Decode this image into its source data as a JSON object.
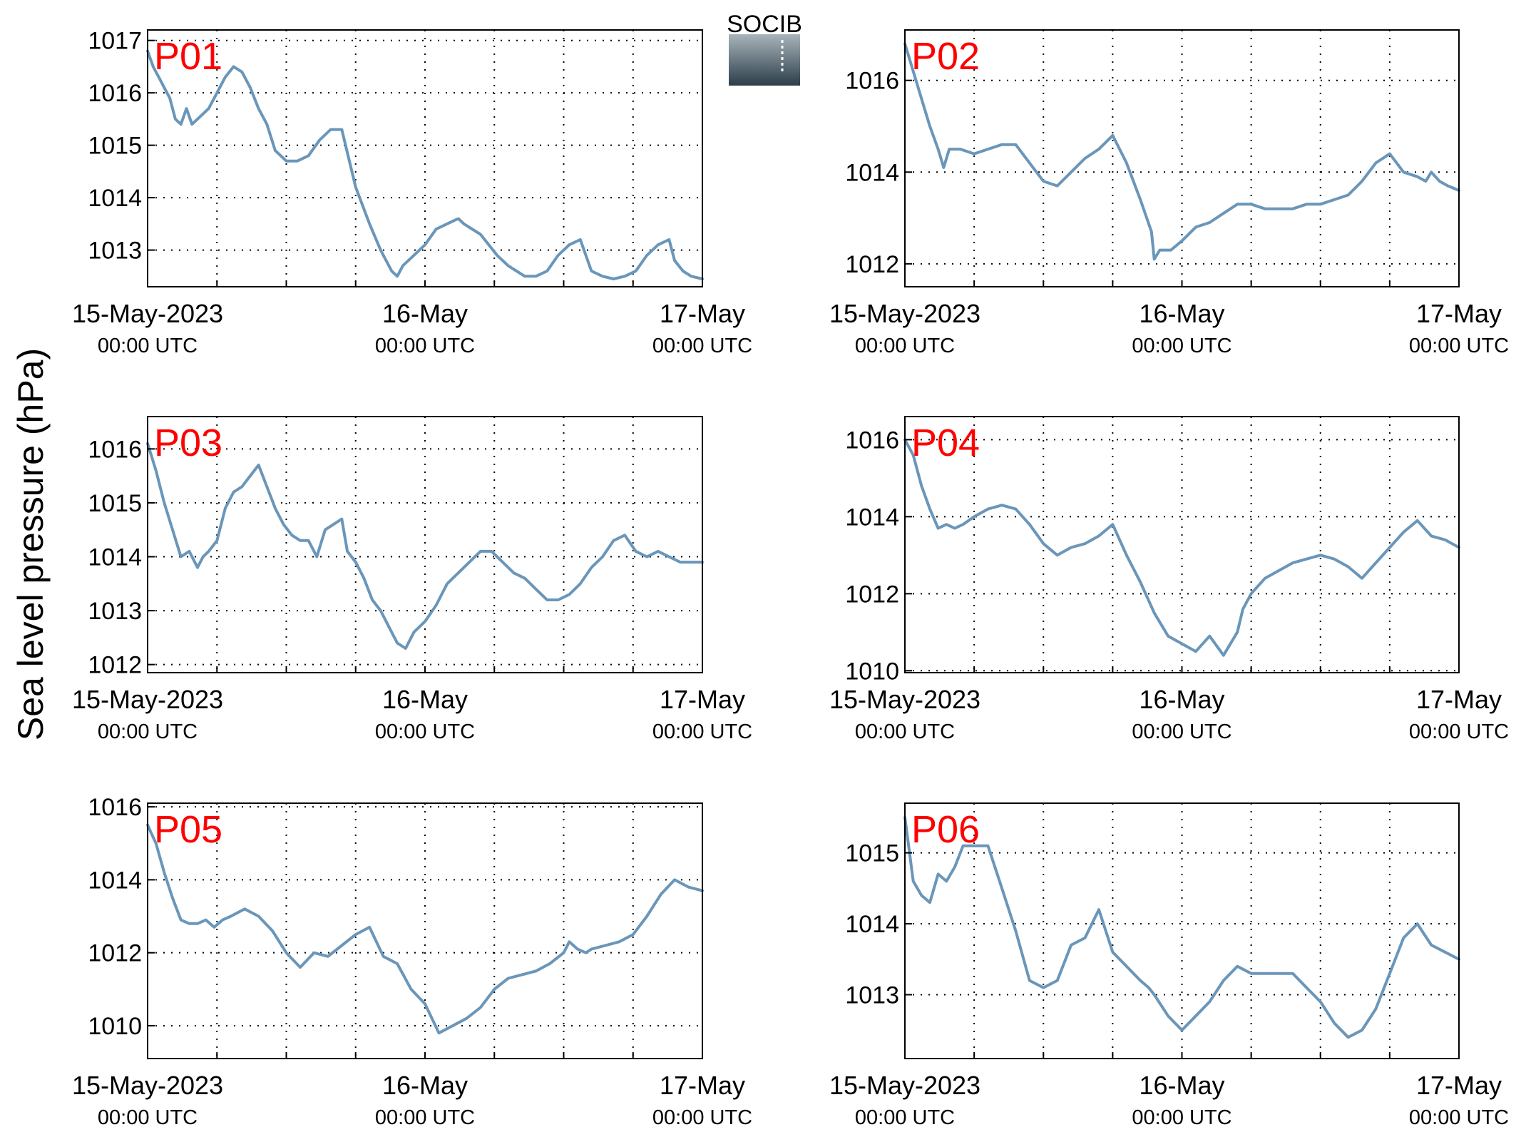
{
  "ylabel": "Sea level pressure (hPa)",
  "logo": {
    "text": "SOCIB",
    "colors": {
      "text": "#5bbfd4",
      "top": "#a8b4ba",
      "bottom": "#2c3e4a"
    }
  },
  "style": {
    "line_color": "#6a96b9",
    "label_color": "#ff0000",
    "axis_color": "#000000"
  },
  "x_ticks": [
    {
      "day": 0,
      "date": "15-May-2023",
      "time": "00:00 UTC"
    },
    {
      "day": 1,
      "date": "16-May",
      "time": "00:00 UTC"
    },
    {
      "day": 2,
      "date": "17-May",
      "time": "00:00 UTC"
    }
  ],
  "chart_data": [
    {
      "type": "line",
      "label": "P01",
      "xlim": [
        0,
        2
      ],
      "ylim": [
        1012.3,
        1017.2
      ],
      "yticks": [
        1013,
        1014,
        1015,
        1016,
        1017
      ],
      "grid": true,
      "x": [
        0,
        0.02,
        0.04,
        0.06,
        0.08,
        0.1,
        0.12,
        0.14,
        0.16,
        0.18,
        0.2,
        0.22,
        0.25,
        0.28,
        0.31,
        0.34,
        0.37,
        0.4,
        0.43,
        0.46,
        0.5,
        0.54,
        0.58,
        0.62,
        0.66,
        0.7,
        0.75,
        0.8,
        0.84,
        0.86,
        0.88,
        0.9,
        0.92,
        0.96,
        1.0,
        1.04,
        1.08,
        1.12,
        1.14,
        1.17,
        1.2,
        1.23,
        1.26,
        1.3,
        1.33,
        1.36,
        1.4,
        1.44,
        1.48,
        1.52,
        1.56,
        1.6,
        1.64,
        1.68,
        1.72,
        1.76,
        1.8,
        1.84,
        1.88,
        1.9,
        1.93,
        1.96,
        2.0
      ],
      "values": [
        1016.8,
        1016.5,
        1016.3,
        1016.1,
        1015.9,
        1015.5,
        1015.4,
        1015.7,
        1015.4,
        1015.5,
        1015.6,
        1015.7,
        1016.0,
        1016.3,
        1016.5,
        1016.4,
        1016.1,
        1015.7,
        1015.4,
        1014.9,
        1014.7,
        1014.7,
        1014.8,
        1015.1,
        1015.3,
        1015.3,
        1014.2,
        1013.5,
        1013.0,
        1012.8,
        1012.6,
        1012.5,
        1012.7,
        1012.9,
        1013.1,
        1013.4,
        1013.5,
        1013.6,
        1013.5,
        1013.4,
        1013.3,
        1013.1,
        1012.9,
        1012.7,
        1012.6,
        1012.5,
        1012.5,
        1012.6,
        1012.9,
        1013.1,
        1013.2,
        1012.6,
        1012.5,
        1012.45,
        1012.5,
        1012.6,
        1012.9,
        1013.1,
        1013.2,
        1012.8,
        1012.6,
        1012.5,
        1012.45
      ]
    },
    {
      "type": "line",
      "label": "P02",
      "xlim": [
        0,
        2
      ],
      "ylim": [
        1011.5,
        1017.1
      ],
      "yticks": [
        1012,
        1014,
        1016
      ],
      "grid": true,
      "x": [
        0,
        0.03,
        0.06,
        0.09,
        0.12,
        0.14,
        0.16,
        0.2,
        0.25,
        0.3,
        0.35,
        0.4,
        0.45,
        0.5,
        0.55,
        0.6,
        0.65,
        0.7,
        0.75,
        0.8,
        0.85,
        0.89,
        0.9,
        0.92,
        0.96,
        1.0,
        1.05,
        1.1,
        1.15,
        1.2,
        1.25,
        1.3,
        1.35,
        1.4,
        1.45,
        1.5,
        1.55,
        1.6,
        1.65,
        1.7,
        1.75,
        1.8,
        1.85,
        1.88,
        1.9,
        1.93,
        1.96,
        2.0
      ],
      "values": [
        1016.8,
        1016.2,
        1015.6,
        1015.0,
        1014.5,
        1014.1,
        1014.5,
        1014.5,
        1014.4,
        1014.5,
        1014.6,
        1014.6,
        1014.2,
        1013.8,
        1013.7,
        1014.0,
        1014.3,
        1014.5,
        1014.8,
        1014.2,
        1013.4,
        1012.7,
        1012.1,
        1012.3,
        1012.3,
        1012.5,
        1012.8,
        1012.9,
        1013.1,
        1013.3,
        1013.3,
        1013.2,
        1013.2,
        1013.2,
        1013.3,
        1013.3,
        1013.4,
        1013.5,
        1013.8,
        1014.2,
        1014.4,
        1014.0,
        1013.9,
        1013.8,
        1014.0,
        1013.8,
        1013.7,
        1013.6
      ]
    },
    {
      "type": "line",
      "label": "P03",
      "xlim": [
        0,
        2
      ],
      "ylim": [
        1011.85,
        1016.6
      ],
      "yticks": [
        1012,
        1013,
        1014,
        1015,
        1016
      ],
      "grid": true,
      "x": [
        0,
        0.03,
        0.06,
        0.09,
        0.12,
        0.15,
        0.18,
        0.2,
        0.22,
        0.25,
        0.28,
        0.31,
        0.34,
        0.37,
        0.4,
        0.43,
        0.46,
        0.49,
        0.52,
        0.55,
        0.58,
        0.61,
        0.64,
        0.67,
        0.7,
        0.72,
        0.75,
        0.78,
        0.81,
        0.84,
        0.87,
        0.9,
        0.93,
        0.96,
        1.0,
        1.04,
        1.08,
        1.12,
        1.16,
        1.2,
        1.24,
        1.28,
        1.32,
        1.36,
        1.4,
        1.44,
        1.48,
        1.52,
        1.56,
        1.6,
        1.64,
        1.68,
        1.72,
        1.76,
        1.8,
        1.84,
        1.88,
        1.92,
        1.96,
        2.0
      ],
      "values": [
        1016.1,
        1015.6,
        1015.0,
        1014.5,
        1014.0,
        1014.1,
        1013.8,
        1014.0,
        1014.1,
        1014.3,
        1014.9,
        1015.2,
        1015.3,
        1015.5,
        1015.7,
        1015.3,
        1014.9,
        1014.6,
        1014.4,
        1014.3,
        1014.3,
        1014.0,
        1014.5,
        1014.6,
        1014.7,
        1014.1,
        1013.9,
        1013.6,
        1013.2,
        1013.0,
        1012.7,
        1012.4,
        1012.3,
        1012.6,
        1012.8,
        1013.1,
        1013.5,
        1013.7,
        1013.9,
        1014.1,
        1014.1,
        1013.9,
        1013.7,
        1013.6,
        1013.4,
        1013.2,
        1013.2,
        1013.3,
        1013.5,
        1013.8,
        1014.0,
        1014.3,
        1014.4,
        1014.1,
        1014.0,
        1014.1,
        1014.0,
        1013.9,
        1013.9,
        1013.9
      ]
    },
    {
      "type": "line",
      "label": "P04",
      "xlim": [
        0,
        2
      ],
      "ylim": [
        1009.95,
        1016.6
      ],
      "yticks": [
        1010,
        1012,
        1014,
        1016
      ],
      "grid": true,
      "x": [
        0,
        0.03,
        0.06,
        0.09,
        0.12,
        0.15,
        0.18,
        0.21,
        0.25,
        0.3,
        0.35,
        0.4,
        0.45,
        0.5,
        0.55,
        0.6,
        0.65,
        0.7,
        0.75,
        0.8,
        0.85,
        0.9,
        0.95,
        1.0,
        1.05,
        1.1,
        1.15,
        1.2,
        1.22,
        1.25,
        1.3,
        1.35,
        1.4,
        1.45,
        1.5,
        1.55,
        1.6,
        1.65,
        1.7,
        1.75,
        1.8,
        1.85,
        1.9,
        1.95,
        2.0
      ],
      "values": [
        1016.0,
        1015.6,
        1014.8,
        1014.2,
        1013.7,
        1013.8,
        1013.7,
        1013.8,
        1014.0,
        1014.2,
        1014.3,
        1014.2,
        1013.8,
        1013.3,
        1013.0,
        1013.2,
        1013.3,
        1013.5,
        1013.8,
        1013.0,
        1012.3,
        1011.5,
        1010.9,
        1010.7,
        1010.5,
        1010.9,
        1010.4,
        1011.0,
        1011.6,
        1012.0,
        1012.4,
        1012.6,
        1012.8,
        1012.9,
        1013.0,
        1012.9,
        1012.7,
        1012.4,
        1012.8,
        1013.2,
        1013.6,
        1013.9,
        1013.5,
        1013.4,
        1013.2
      ]
    },
    {
      "type": "line",
      "label": "P05",
      "xlim": [
        0,
        2
      ],
      "ylim": [
        1009.1,
        1016.1
      ],
      "yticks": [
        1010,
        1012,
        1014,
        1016
      ],
      "grid": true,
      "x": [
        0,
        0.03,
        0.06,
        0.09,
        0.12,
        0.15,
        0.18,
        0.21,
        0.24,
        0.27,
        0.3,
        0.35,
        0.4,
        0.45,
        0.5,
        0.55,
        0.6,
        0.65,
        0.7,
        0.75,
        0.8,
        0.85,
        0.9,
        0.95,
        1.0,
        1.05,
        1.1,
        1.15,
        1.2,
        1.25,
        1.3,
        1.35,
        1.4,
        1.45,
        1.5,
        1.52,
        1.55,
        1.58,
        1.6,
        1.65,
        1.7,
        1.75,
        1.8,
        1.85,
        1.9,
        1.95,
        2.0
      ],
      "values": [
        1015.5,
        1015.0,
        1014.2,
        1013.5,
        1012.9,
        1012.8,
        1012.8,
        1012.9,
        1012.7,
        1012.9,
        1013.0,
        1013.2,
        1013.0,
        1012.6,
        1012.0,
        1011.6,
        1012.0,
        1011.9,
        1012.2,
        1012.5,
        1012.7,
        1011.9,
        1011.7,
        1011.0,
        1010.6,
        1009.8,
        1010.0,
        1010.2,
        1010.5,
        1011.0,
        1011.3,
        1011.4,
        1011.5,
        1011.7,
        1012.0,
        1012.3,
        1012.1,
        1012.0,
        1012.1,
        1012.2,
        1012.3,
        1012.5,
        1013.0,
        1013.6,
        1014.0,
        1013.8,
        1013.7
      ]
    },
    {
      "type": "line",
      "label": "P06",
      "xlim": [
        0,
        2
      ],
      "ylim": [
        1012.1,
        1015.7
      ],
      "yticks": [
        1013,
        1014,
        1015
      ],
      "grid": true,
      "x": [
        0,
        0.03,
        0.06,
        0.09,
        0.12,
        0.15,
        0.18,
        0.21,
        0.24,
        0.27,
        0.3,
        0.35,
        0.4,
        0.45,
        0.5,
        0.55,
        0.6,
        0.65,
        0.7,
        0.75,
        0.8,
        0.85,
        0.88,
        0.9,
        0.95,
        1.0,
        1.05,
        1.1,
        1.15,
        1.2,
        1.25,
        1.3,
        1.35,
        1.4,
        1.45,
        1.5,
        1.55,
        1.6,
        1.65,
        1.7,
        1.75,
        1.8,
        1.85,
        1.9,
        1.95,
        2.0
      ],
      "values": [
        1015.5,
        1014.6,
        1014.4,
        1014.3,
        1014.7,
        1014.6,
        1014.8,
        1015.1,
        1015.1,
        1015.1,
        1015.1,
        1014.5,
        1013.9,
        1013.2,
        1013.1,
        1013.2,
        1013.7,
        1013.8,
        1014.2,
        1013.6,
        1013.4,
        1013.2,
        1013.1,
        1013.0,
        1012.7,
        1012.5,
        1012.7,
        1012.9,
        1013.2,
        1013.4,
        1013.3,
        1013.3,
        1013.3,
        1013.3,
        1013.1,
        1012.9,
        1012.6,
        1012.4,
        1012.5,
        1012.8,
        1013.3,
        1013.8,
        1014.0,
        1013.7,
        1013.6,
        1013.5
      ]
    }
  ]
}
